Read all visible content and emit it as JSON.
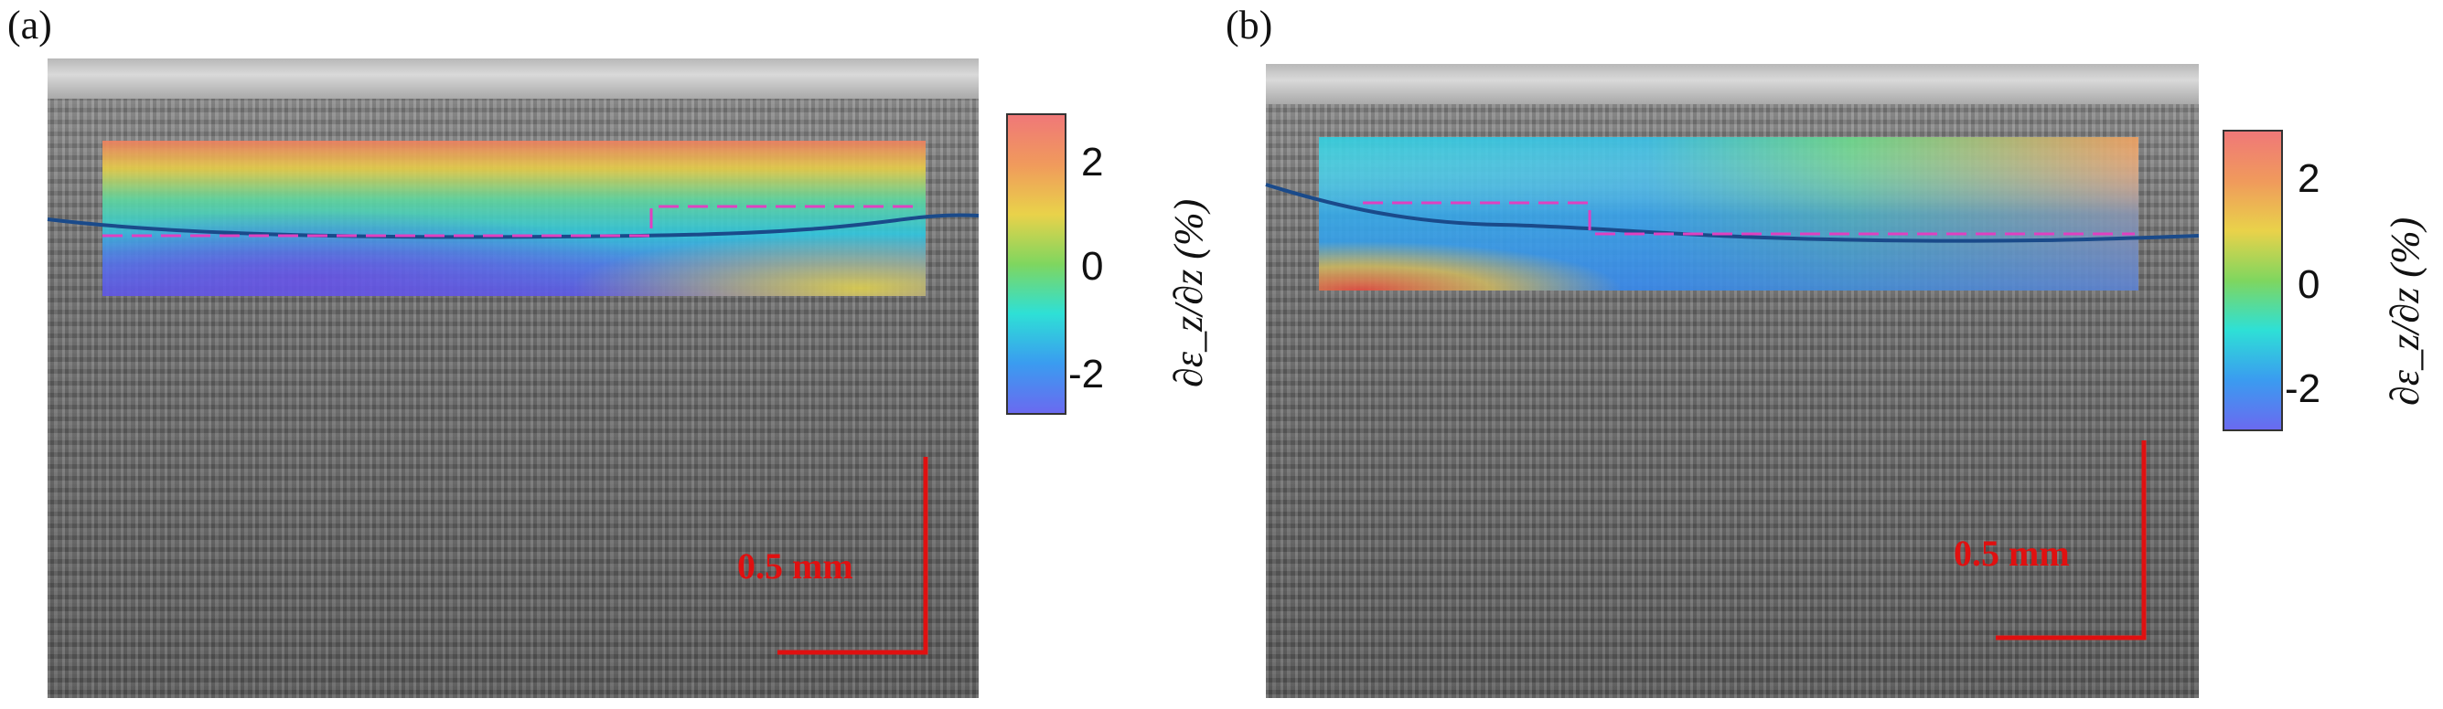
{
  "panels": [
    {
      "label": "(a)",
      "colorbar": {
        "ticks": [
          "2",
          "0",
          "-2"
        ],
        "title": "∂ε_z/∂z (%)"
      },
      "scalebar": "0.5 mm"
    },
    {
      "label": "(b)",
      "colorbar": {
        "ticks": [
          "2",
          "0",
          "-2"
        ],
        "title": "∂ε_z/∂z (%)"
      },
      "scalebar": "0.5 mm"
    }
  ],
  "colors": {
    "boundary_line": "#1a4a8a",
    "dashed_line": "#e040c0",
    "scalebar": "#e01010"
  }
}
